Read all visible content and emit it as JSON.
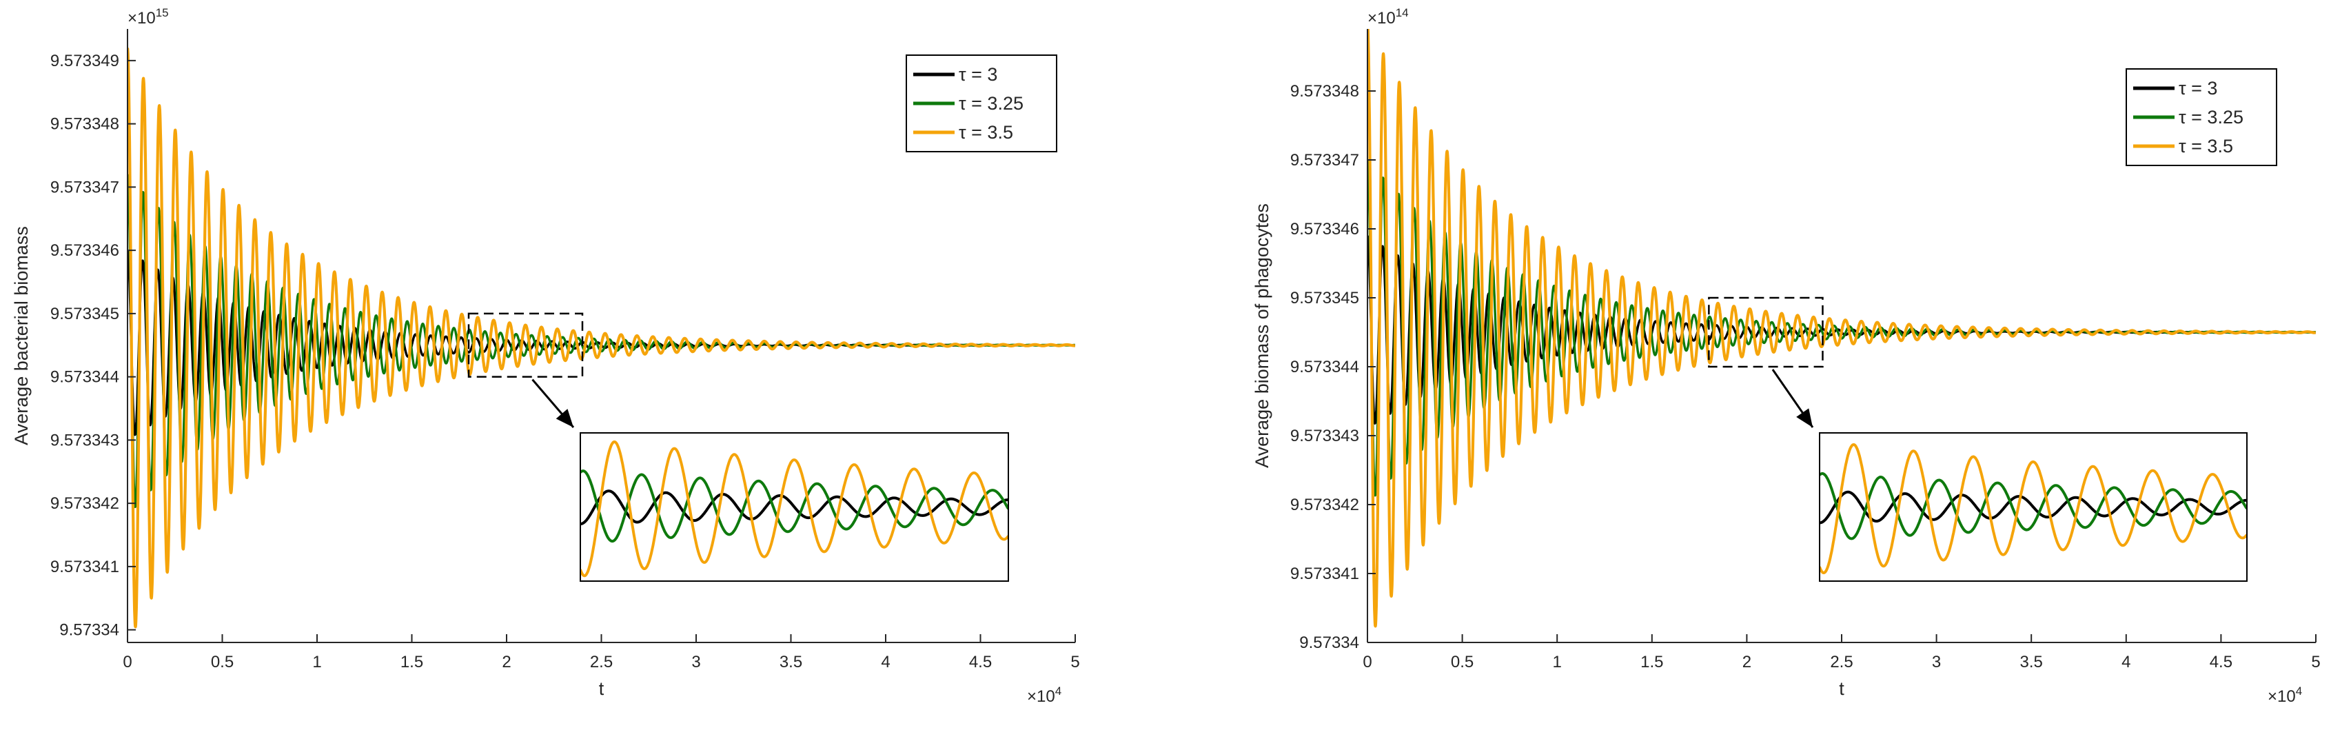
{
  "colors": {
    "tau_3": "#000000",
    "tau_3_25": "#0e7a0d",
    "tau_3_5": "#f5a40a",
    "axis": "#262626"
  },
  "chart_data": [
    {
      "type": "line",
      "xlabel": "t",
      "ylabel": "Average bacterial biomass",
      "x_exponent_label": "×10",
      "x_exponent": "4",
      "y_exponent_label": "×10",
      "y_exponent": "15",
      "xlim": [
        0,
        50000
      ],
      "ylim": [
        9.5733398,
        9.5733495
      ],
      "x_ticks": [
        0,
        5000,
        10000,
        15000,
        20000,
        25000,
        30000,
        35000,
        40000,
        45000,
        50000
      ],
      "x_tick_labels": [
        "0",
        "0.5",
        "1",
        "1.5",
        "2",
        "2.5",
        "3",
        "3.5",
        "4",
        "4.5",
        "5"
      ],
      "y_ticks": [
        9.57334,
        9.573341,
        9.573342,
        9.573343,
        9.573344,
        9.573345,
        9.573346,
        9.573347,
        9.573348,
        9.573349
      ],
      "y_tick_labels": [
        "9.57334",
        "9.573341",
        "9.573342",
        "9.573343",
        "9.573344",
        "9.573345",
        "9.573346",
        "9.573347",
        "9.573348",
        "9.573349"
      ],
      "equilibrium": 9.5733445,
      "legend_position": "top-right",
      "series": [
        {
          "name": "τ = 3",
          "tau": 3,
          "initial_amplitude": 1.5e-06,
          "decay_time": 7000,
          "period": 800
        },
        {
          "name": "τ = 3.25",
          "tau": 3.25,
          "initial_amplitude": 2.7e-06,
          "decay_time": 7500,
          "period": 820
        },
        {
          "name": "τ = 3.5",
          "tau": 3.5,
          "initial_amplitude": 4.7e-06,
          "decay_time": 7800,
          "period": 840
        }
      ],
      "zoom_window": {
        "x": [
          18000,
          24000
        ],
        "y": [
          9.573344,
          9.573345
        ]
      }
    },
    {
      "type": "line",
      "xlabel": "t",
      "ylabel": "Average biomass of  phagocytes",
      "x_exponent_label": "×10",
      "x_exponent": "4",
      "y_exponent_label": "×10",
      "y_exponent": "14",
      "xlim": [
        0,
        50000
      ],
      "ylim": [
        9.57334,
        9.5733489
      ],
      "x_ticks": [
        0,
        5000,
        10000,
        15000,
        20000,
        25000,
        30000,
        35000,
        40000,
        45000,
        50000
      ],
      "x_tick_labels": [
        "0",
        "0.5",
        "1",
        "1.5",
        "2",
        "2.5",
        "3",
        "3.5",
        "4",
        "4.5",
        "5"
      ],
      "y_ticks": [
        9.57334,
        9.573341,
        9.573342,
        9.573343,
        9.573344,
        9.573345,
        9.573346,
        9.573347,
        9.573348
      ],
      "y_tick_labels": [
        "9.57334",
        "9.573341",
        "9.573342",
        "9.573343",
        "9.573344",
        "9.573345",
        "9.573346",
        "9.573347",
        "9.573348"
      ],
      "equilibrium": 9.5733445,
      "legend_position": "top-right",
      "series": [
        {
          "name": "τ = 3",
          "tau": 3,
          "initial_amplitude": 1.4e-06,
          "decay_time": 7000,
          "period": 800
        },
        {
          "name": "τ = 3.25",
          "tau": 3.25,
          "initial_amplitude": 2.5e-06,
          "decay_time": 7500,
          "period": 820
        },
        {
          "name": "τ = 3.5",
          "tau": 3.5,
          "initial_amplitude": 4.5e-06,
          "decay_time": 7800,
          "period": 840
        }
      ],
      "zoom_window": {
        "x": [
          18000,
          24000
        ],
        "y": [
          9.573344,
          9.573345
        ]
      }
    }
  ]
}
